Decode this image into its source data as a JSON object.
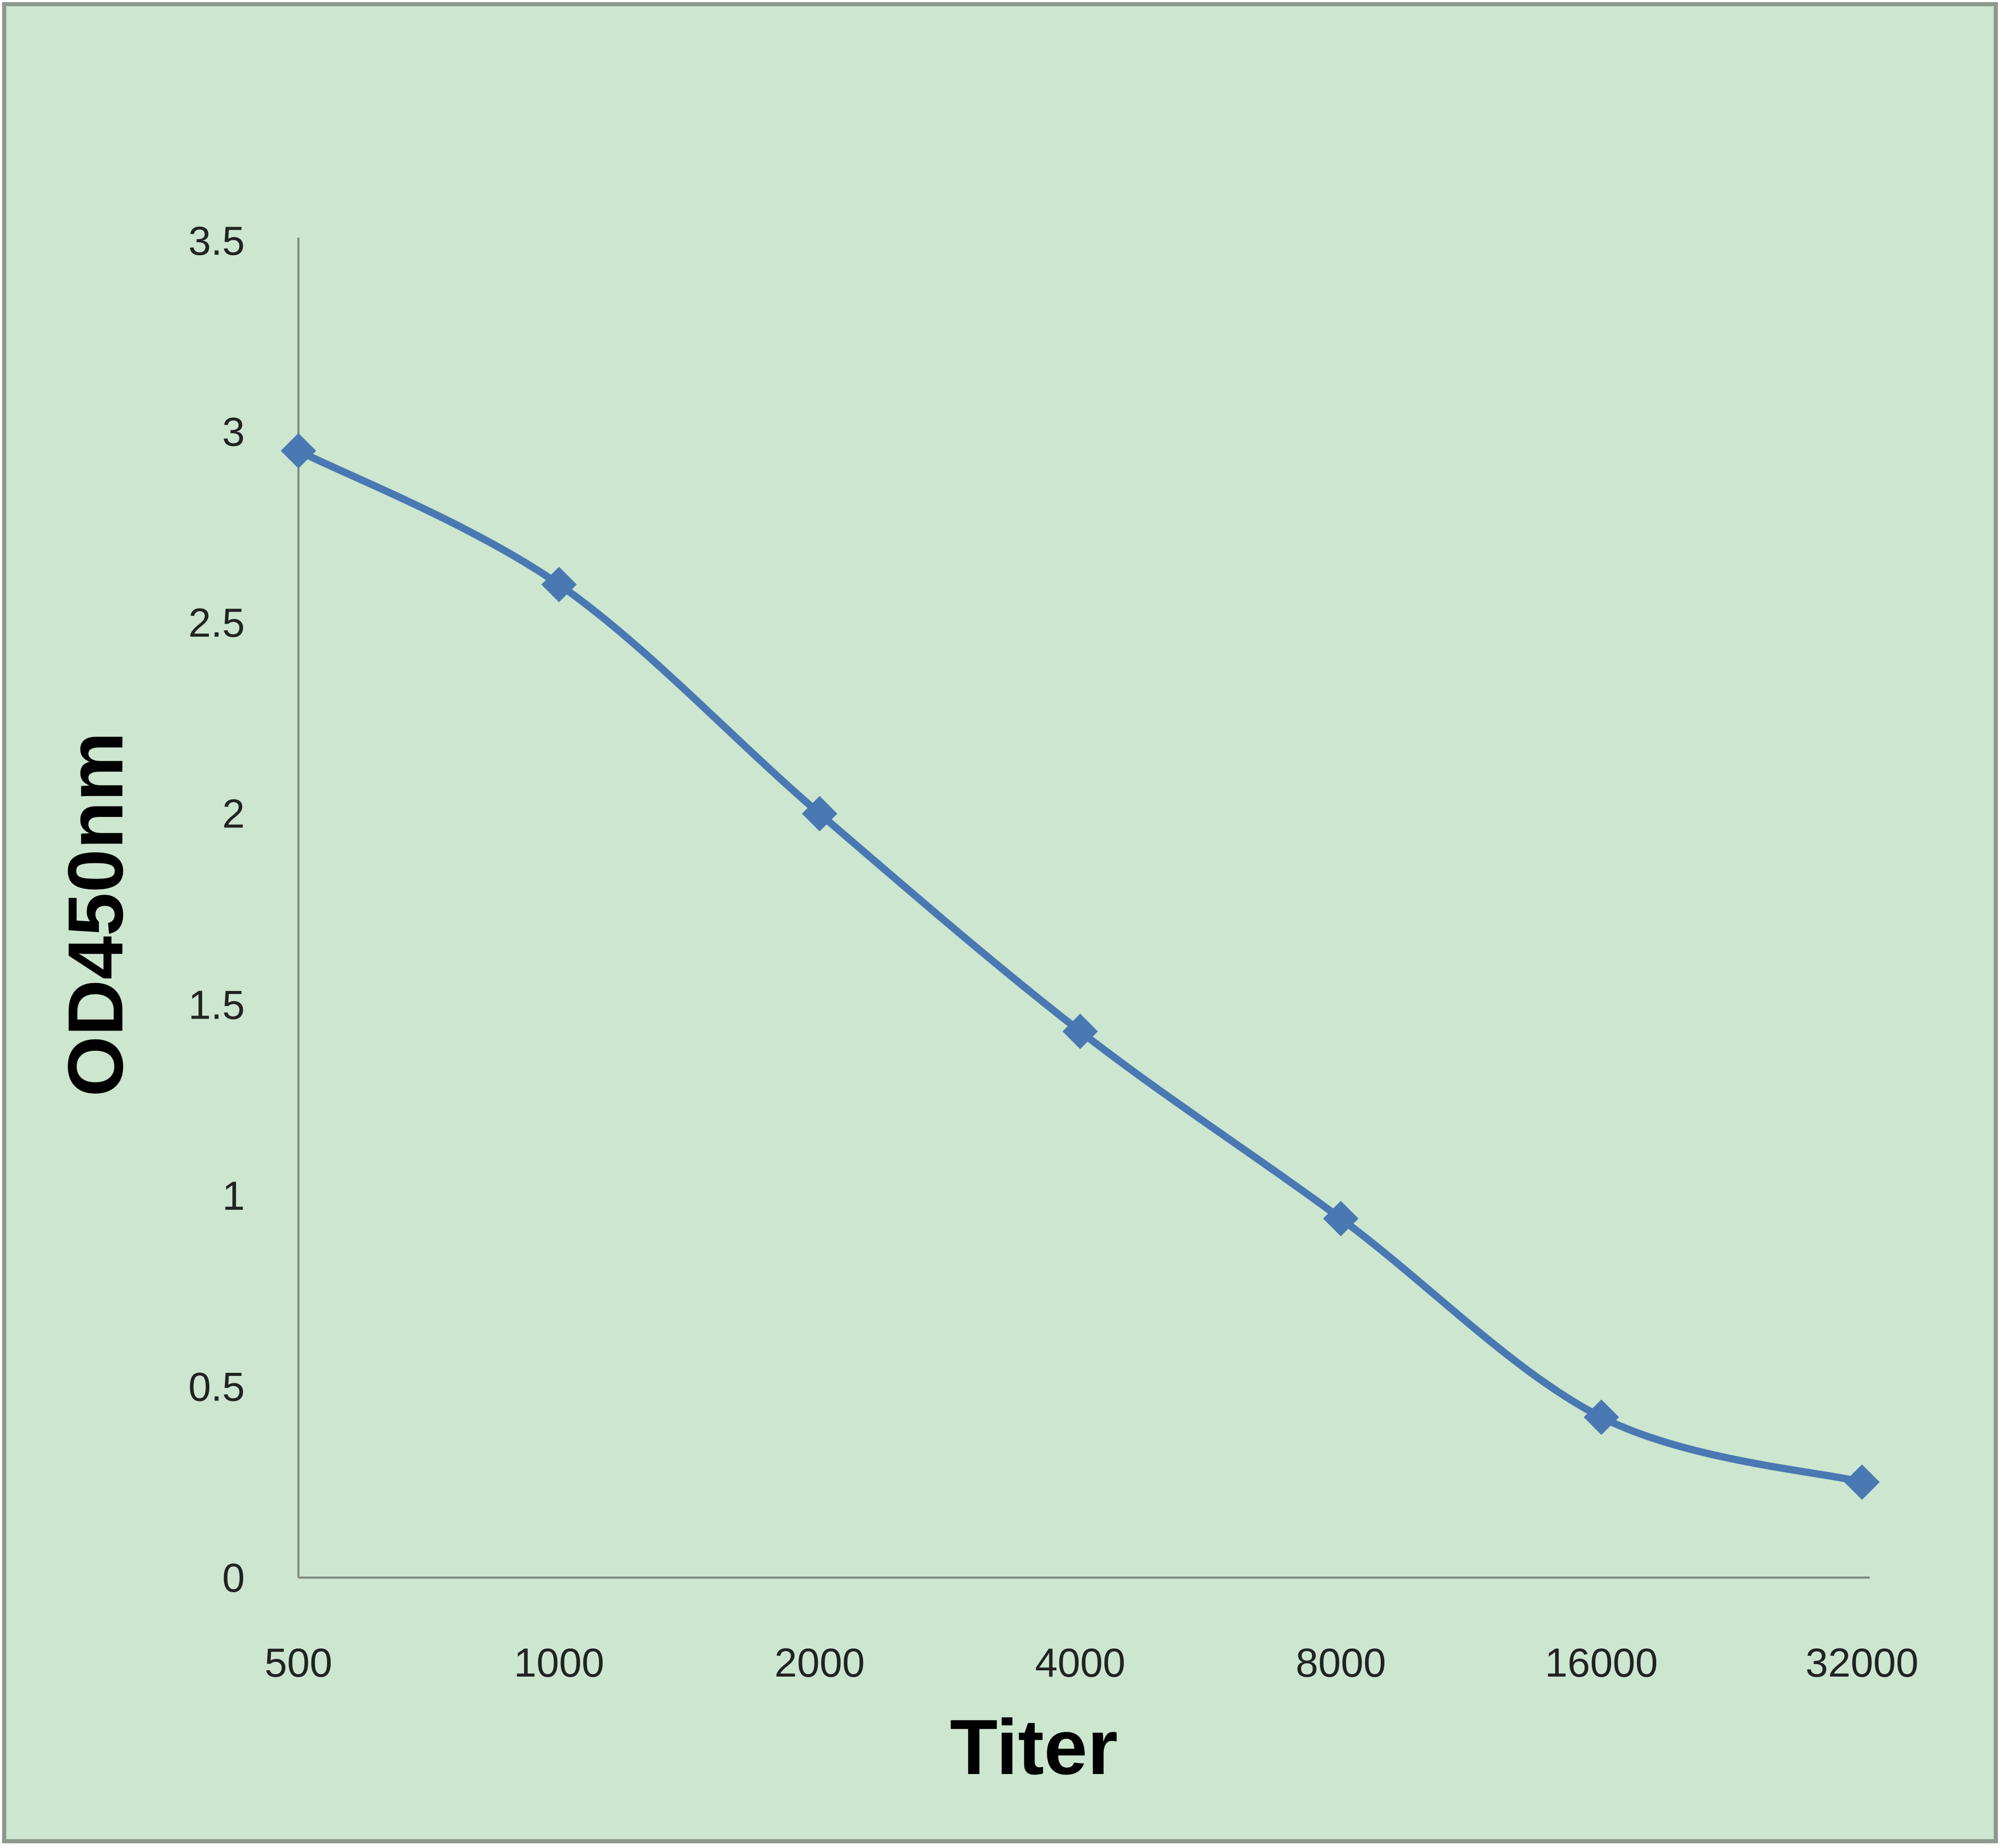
{
  "colors": {
    "background": "#cce6cf",
    "frame": "#8c9a8e",
    "axis": "#7f8c81",
    "series": "#4a78b2"
  },
  "chart_data": {
    "type": "line",
    "categories": [
      "500",
      "1000",
      "2000",
      "4000",
      "8000",
      "16000",
      "32000"
    ],
    "series": [
      {
        "values": [
          2.95,
          2.6,
          2.0,
          1.43,
          0.94,
          0.42,
          0.25
        ]
      }
    ],
    "yticks": [
      "0",
      "0.5",
      "1",
      "1.5",
      "2",
      "2.5",
      "3",
      "3.5"
    ],
    "ylim": [
      0,
      3.5
    ],
    "xlabel": "Titer",
    "ylabel": "OD450nm",
    "grid": false,
    "legend": "none",
    "marker": "diamond",
    "smooth": true
  }
}
